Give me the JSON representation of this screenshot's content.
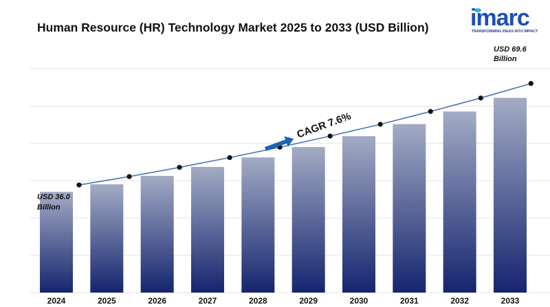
{
  "header": {
    "title": "Human Resource (HR) Technology Market 2025 to 2033 (USD Billion)"
  },
  "brand": {
    "logo_text": "imarc",
    "tagline": "TRANSFORMING IDEAS INTO IMPACT",
    "logo_color": "#1e4fb8",
    "logo_accent": "#2bb3e6"
  },
  "chart_data": {
    "type": "bar",
    "title": "Human Resource (HR) Technology Market 2025 to 2033 (USD Billion)",
    "categories": [
      "2024",
      "2025",
      "2026",
      "2027",
      "2028",
      "2029",
      "2030",
      "2031",
      "2032",
      "2033"
    ],
    "values": [
      36.0,
      38.7,
      41.7,
      44.9,
      48.3,
      52.0,
      55.9,
      60.2,
      64.7,
      69.6
    ],
    "line_overlay": true,
    "ylim": [
      0,
      80
    ],
    "grid": true,
    "annotations": {
      "start_label": [
        "USD 36.0",
        "Billion"
      ],
      "end_label": [
        "USD 69.6",
        "Billion"
      ],
      "cagr": "CAGR  7.6%"
    },
    "colors": {
      "bar_top": "#a3abc4",
      "bar_bottom": "#15256f",
      "line": "#4a73b5",
      "marker": "#111111",
      "arrow": "#1c64b4"
    }
  }
}
